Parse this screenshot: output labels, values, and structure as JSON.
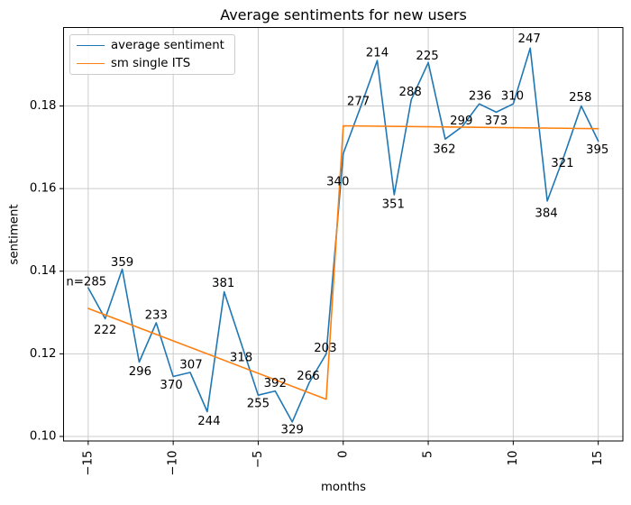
{
  "title": "Average sentiments for new users",
  "xlabel": "months",
  "ylabel": "sentiment",
  "colors": {
    "blue": "#1f77b4",
    "orange": "#ff7f0e",
    "grid": "#cccccc",
    "spine": "#000000",
    "background": "#ffffff"
  },
  "legend": {
    "entries": [
      {
        "label": "average sentiment",
        "color": "#1f77b4"
      },
      {
        "label": "sm single ITS",
        "color": "#ff7f0e"
      }
    ]
  },
  "chart_data": {
    "type": "line",
    "title": "Average sentiments for new users",
    "xlabel": "months",
    "ylabel": "sentiment",
    "xlim": [
      -16.45,
      16.45
    ],
    "ylim": [
      0.0989,
      0.199
    ],
    "grid": true,
    "legend_position": "upper left",
    "xticks": [
      {
        "value": -15,
        "label": "−15"
      },
      {
        "value": -10,
        "label": "−10"
      },
      {
        "value": -5,
        "label": "−5"
      },
      {
        "value": 0,
        "label": "0"
      },
      {
        "value": 5,
        "label": "5"
      },
      {
        "value": 10,
        "label": "10"
      },
      {
        "value": 15,
        "label": "15"
      }
    ],
    "yticks": [
      {
        "value": 0.1,
        "label": "0.10"
      },
      {
        "value": 0.12,
        "label": "0.12"
      },
      {
        "value": 0.14,
        "label": "0.14"
      },
      {
        "value": 0.16,
        "label": "0.16"
      },
      {
        "value": 0.18,
        "label": "0.18"
      }
    ],
    "series": [
      {
        "name": "average sentiment",
        "color": "#1f77b4",
        "points": [
          {
            "x": -15,
            "y": 0.136,
            "label": "n=285",
            "dx": -2,
            "dy": -6
          },
          {
            "x": -14,
            "y": 0.1285,
            "label": "222",
            "dx": 0,
            "dy": 13
          },
          {
            "x": -13,
            "y": 0.1405,
            "label": "359",
            "dx": 0,
            "dy": -7
          },
          {
            "x": -12,
            "y": 0.118,
            "label": "296",
            "dx": 1,
            "dy": 11
          },
          {
            "x": -11,
            "y": 0.1275,
            "label": "233",
            "dx": 0,
            "dy": -8
          },
          {
            "x": -10,
            "y": 0.1145,
            "label": "370",
            "dx": -2,
            "dy": 10
          },
          {
            "x": -9,
            "y": 0.1155,
            "label": "307",
            "dx": 1,
            "dy": -8
          },
          {
            "x": -8,
            "y": 0.106,
            "label": "244",
            "dx": 2,
            "dy": 11
          },
          {
            "x": -7,
            "y": 0.135,
            "label": "381",
            "dx": -1,
            "dy": -9
          },
          {
            "x": -6,
            "y": 0.1225,
            "label": "318",
            "dx": 0,
            "dy": 16
          },
          {
            "x": -5,
            "y": 0.11,
            "label": "255",
            "dx": 0,
            "dy": 10
          },
          {
            "x": -4,
            "y": 0.111,
            "label": "392",
            "dx": 0,
            "dy": -8
          },
          {
            "x": -3,
            "y": 0.1035,
            "label": "329",
            "dx": 0,
            "dy": 9
          },
          {
            "x": -2,
            "y": 0.113,
            "label": "266",
            "dx": -1,
            "dy": -7
          },
          {
            "x": -1,
            "y": 0.12,
            "label": "203",
            "dx": -1,
            "dy": -6
          },
          {
            "x": 0,
            "y": 0.1685,
            "label": "340",
            "dx": -6,
            "dy": 32
          },
          {
            "x": 1,
            "y": 0.1795,
            "label": "277",
            "dx": -2,
            "dy": -7
          },
          {
            "x": 2,
            "y": 0.191,
            "label": "214",
            "dx": 0,
            "dy": -8
          },
          {
            "x": 3,
            "y": 0.1585,
            "label": "351",
            "dx": -1,
            "dy": 11
          },
          {
            "x": 4,
            "y": 0.1815,
            "label": "288",
            "dx": -1,
            "dy": -8
          },
          {
            "x": 5,
            "y": 0.1905,
            "label": "225",
            "dx": -1,
            "dy": -7
          },
          {
            "x": 6,
            "y": 0.172,
            "label": "362",
            "dx": -1,
            "dy": 12
          },
          {
            "x": 7,
            "y": 0.175,
            "label": "299",
            "dx": -1,
            "dy": -6
          },
          {
            "x": 8,
            "y": 0.1805,
            "label": "236",
            "dx": 1,
            "dy": -8
          },
          {
            "x": 9,
            "y": 0.1785,
            "label": "373",
            "dx": 0,
            "dy": 10
          },
          {
            "x": 10,
            "y": 0.1805,
            "label": "310",
            "dx": -1,
            "dy": -8
          },
          {
            "x": 11,
            "y": 0.194,
            "label": "247",
            "dx": -1,
            "dy": -10
          },
          {
            "x": 12,
            "y": 0.157,
            "label": "384",
            "dx": -1,
            "dy": 14
          },
          {
            "x": 13,
            "y": 0.168,
            "label": "321",
            "dx": -2,
            "dy": 9
          },
          {
            "x": 14,
            "y": 0.18,
            "label": "258",
            "dx": -1,
            "dy": -9
          },
          {
            "x": 15,
            "y": 0.1715,
            "label": "395",
            "dx": -1,
            "dy": 10
          }
        ]
      },
      {
        "name": "sm single ITS",
        "color": "#ff7f0e",
        "points": [
          {
            "x": -15,
            "y": 0.131
          },
          {
            "x": -1,
            "y": 0.109
          },
          {
            "x": 0,
            "y": 0.1752
          },
          {
            "x": 15,
            "y": 0.1745
          }
        ]
      }
    ]
  }
}
